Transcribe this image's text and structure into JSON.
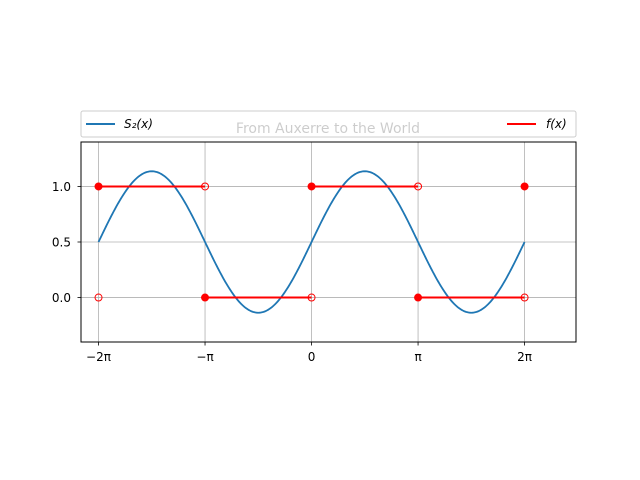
{
  "chart_data": {
    "type": "line",
    "title": "From Auxerre to the World",
    "xlabel": "",
    "ylabel": "",
    "xlim": [
      -6.8,
      7.8
    ],
    "ylim": [
      -0.4,
      1.4
    ],
    "grid": true,
    "legend_placement": "top, spanning plot width",
    "x_ticks": [
      {
        "value": -6.2832,
        "label": "−2π"
      },
      {
        "value": -3.1416,
        "label": "−π"
      },
      {
        "value": 0,
        "label": "0"
      },
      {
        "value": 3.1416,
        "label": "π"
      },
      {
        "value": 6.2832,
        "label": "2π"
      }
    ],
    "y_ticks": [
      {
        "value": 0.0,
        "label": "0.0"
      },
      {
        "value": 0.5,
        "label": "0.5"
      },
      {
        "value": 1.0,
        "label": "1.0"
      }
    ],
    "series": [
      {
        "name": "S₂(x)",
        "color": "#1f77b4",
        "formula": "0.5 + (2/π)·sin(x)",
        "x_range": [
          -6.2832,
          6.2832
        ]
      },
      {
        "name": "f(x)",
        "color": "#ff0000",
        "segments": [
          {
            "x": [
              -6.2832,
              -3.1416
            ],
            "y": 1
          },
          {
            "x": [
              -3.1416,
              0
            ],
            "y": 0
          },
          {
            "x": [
              0,
              3.1416
            ],
            "y": 1
          },
          {
            "x": [
              3.1416,
              6.2832
            ],
            "y": 0
          }
        ],
        "filled_points": [
          {
            "x": -6.2832,
            "y": 1
          },
          {
            "x": -3.1416,
            "y": 0
          },
          {
            "x": 0,
            "y": 1
          },
          {
            "x": 3.1416,
            "y": 0
          },
          {
            "x": 6.2832,
            "y": 1
          }
        ],
        "open_points": [
          {
            "x": -6.2832,
            "y": 0
          },
          {
            "x": -3.1416,
            "y": 1
          },
          {
            "x": 0,
            "y": 0
          },
          {
            "x": 3.1416,
            "y": 1
          },
          {
            "x": 6.2832,
            "y": 0
          }
        ]
      }
    ]
  }
}
